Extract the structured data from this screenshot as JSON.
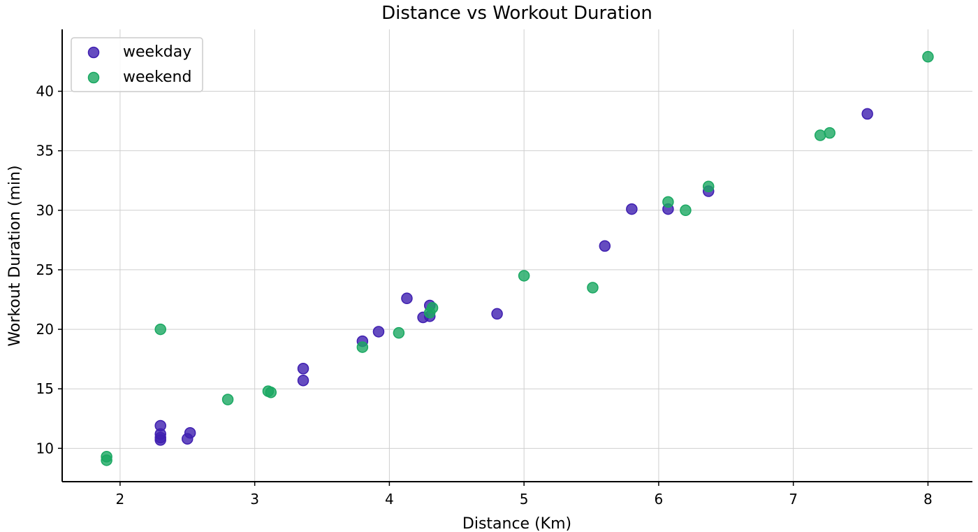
{
  "chart_data": {
    "type": "scatter",
    "title": "Distance vs Workout Duration",
    "xlabel": "Distance (Km)",
    "ylabel": "Workout Duration (min)",
    "xlim": [
      1.57,
      8.33
    ],
    "ylim": [
      7.2,
      45.2
    ],
    "xticks": [
      2,
      3,
      4,
      5,
      6,
      7,
      8
    ],
    "yticks": [
      10,
      15,
      20,
      25,
      30,
      35,
      40
    ],
    "grid": true,
    "legend": "top-left",
    "series": [
      {
        "name": "weekday",
        "color": "#3f1fb0",
        "points": [
          {
            "x": 2.3,
            "y": 11.9
          },
          {
            "x": 2.3,
            "y": 11.2
          },
          {
            "x": 2.3,
            "y": 10.9
          },
          {
            "x": 2.3,
            "y": 10.7
          },
          {
            "x": 2.5,
            "y": 10.8
          },
          {
            "x": 2.52,
            "y": 11.3
          },
          {
            "x": 3.36,
            "y": 16.7
          },
          {
            "x": 3.36,
            "y": 15.7
          },
          {
            "x": 3.8,
            "y": 19.0
          },
          {
            "x": 3.92,
            "y": 19.8
          },
          {
            "x": 4.13,
            "y": 22.6
          },
          {
            "x": 4.25,
            "y": 21.0
          },
          {
            "x": 4.3,
            "y": 22.0
          },
          {
            "x": 4.3,
            "y": 21.1
          },
          {
            "x": 4.8,
            "y": 21.3
          },
          {
            "x": 5.6,
            "y": 27.0
          },
          {
            "x": 5.8,
            "y": 30.1
          },
          {
            "x": 6.07,
            "y": 30.1
          },
          {
            "x": 6.37,
            "y": 31.6
          },
          {
            "x": 7.55,
            "y": 38.1
          }
        ]
      },
      {
        "name": "weekend",
        "color": "#1aa862",
        "points": [
          {
            "x": 1.9,
            "y": 9.3
          },
          {
            "x": 1.9,
            "y": 9.0
          },
          {
            "x": 2.3,
            "y": 20.0
          },
          {
            "x": 2.8,
            "y": 14.1
          },
          {
            "x": 3.1,
            "y": 14.8
          },
          {
            "x": 3.12,
            "y": 14.7
          },
          {
            "x": 3.8,
            "y": 18.5
          },
          {
            "x": 4.07,
            "y": 19.7
          },
          {
            "x": 4.3,
            "y": 21.4
          },
          {
            "x": 4.32,
            "y": 21.8
          },
          {
            "x": 5.0,
            "y": 24.5
          },
          {
            "x": 5.51,
            "y": 23.5
          },
          {
            "x": 6.07,
            "y": 30.7
          },
          {
            "x": 6.2,
            "y": 30.0
          },
          {
            "x": 6.37,
            "y": 32.0
          },
          {
            "x": 7.2,
            "y": 36.3
          },
          {
            "x": 7.27,
            "y": 36.5
          },
          {
            "x": 8.0,
            "y": 42.9
          }
        ]
      }
    ]
  }
}
